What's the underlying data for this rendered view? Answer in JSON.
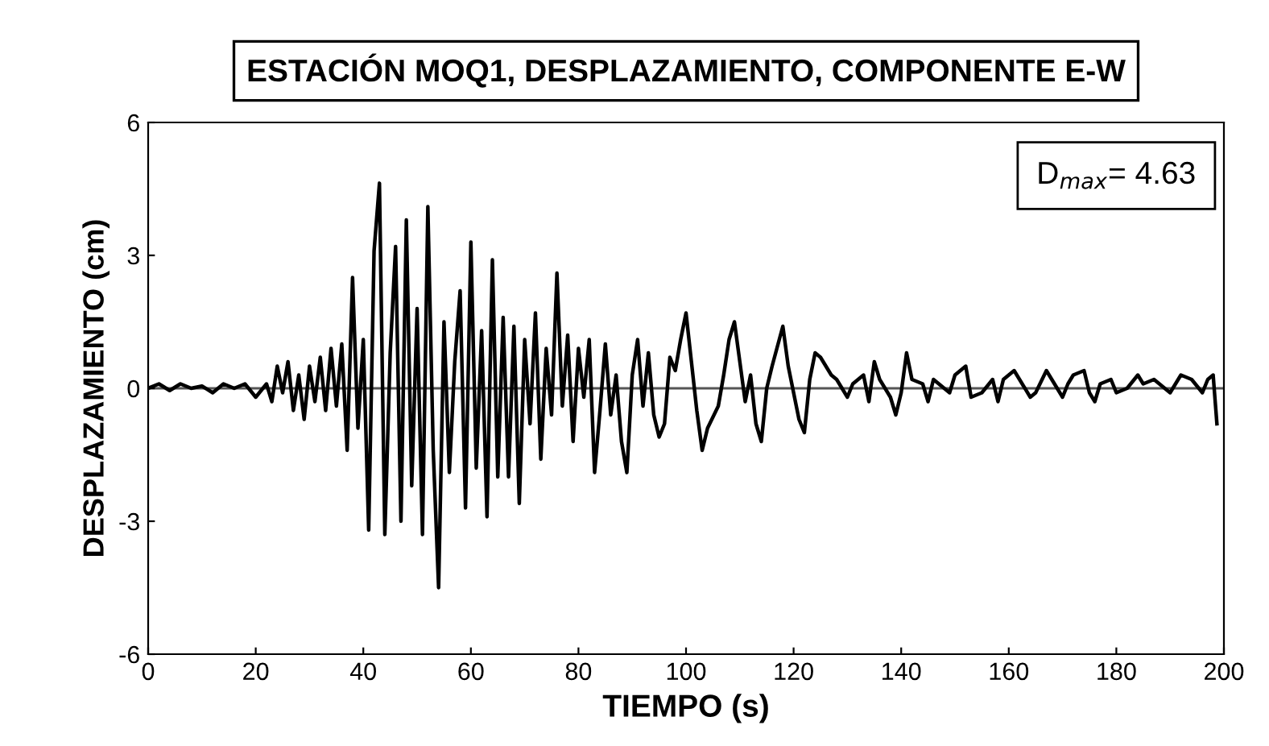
{
  "chart_data": {
    "type": "line",
    "title": "ESTACIÓN MOQ1, DESPLAZAMIENTO, COMPONENTE E-W",
    "xlabel": "TIEMPO (s)",
    "ylabel": "DESPLAZAMIENTO (cm)",
    "annotations": [
      "D$_{max}$= 4.63"
    ],
    "xlim": [
      0,
      200
    ],
    "xticks": [
      0,
      20,
      40,
      60,
      80,
      100,
      120,
      140,
      160,
      180,
      200
    ],
    "ylim": [
      -6,
      6
    ],
    "yticks": [
      -6,
      -3,
      0,
      3,
      6
    ],
    "grid": false,
    "legend": false,
    "ref_lines": [
      {
        "axis": "y",
        "value": 0,
        "color": "#555555"
      }
    ],
    "series": [
      {
        "color": "#000000",
        "x": [
          0,
          2,
          4,
          6,
          8,
          10,
          12,
          14,
          16,
          18,
          20,
          22,
          23,
          24,
          25,
          26,
          27,
          28,
          29,
          30,
          31,
          32,
          33,
          34,
          35,
          36,
          37,
          38,
          39,
          40,
          41,
          42,
          43,
          44,
          45,
          46,
          47,
          48,
          49,
          50,
          51,
          52,
          53,
          54,
          55,
          56,
          57,
          58,
          59,
          60,
          61,
          62,
          63,
          64,
          65,
          66,
          67,
          68,
          69,
          70,
          71,
          72,
          73,
          74,
          75,
          76,
          77,
          78,
          79,
          80,
          81,
          82,
          83,
          84,
          85,
          86,
          87,
          88,
          89,
          90,
          91,
          92,
          93,
          94,
          95,
          96,
          97,
          98,
          99,
          100,
          101,
          102,
          103,
          104,
          106,
          107,
          108,
          109,
          110,
          111,
          112,
          113,
          114,
          115,
          116,
          118,
          119,
          121,
          122,
          123,
          124,
          125,
          127,
          128,
          130,
          131,
          133,
          134,
          135,
          136,
          138,
          139,
          140,
          141,
          142,
          144,
          145,
          146,
          147,
          149,
          150,
          152,
          153,
          155,
          157,
          158,
          159,
          161,
          162,
          164,
          165,
          167,
          168,
          170,
          171,
          172,
          174,
          175,
          176,
          177,
          179,
          180,
          182,
          184,
          185,
          187,
          188,
          190,
          192,
          194,
          196,
          197,
          198,
          198.7
        ],
        "values": [
          0,
          0.1,
          -0.05,
          0.1,
          0,
          0.05,
          -0.1,
          0.1,
          0,
          0.1,
          -0.2,
          0.1,
          -0.3,
          0.5,
          -0.1,
          0.6,
          -0.5,
          0.3,
          -0.7,
          0.5,
          -0.3,
          0.7,
          -0.5,
          0.9,
          -0.4,
          1.0,
          -1.4,
          2.5,
          -0.9,
          1.1,
          -3.2,
          3.1,
          4.63,
          -3.3,
          0.8,
          3.2,
          -3.0,
          3.8,
          -2.2,
          1.8,
          -3.3,
          4.1,
          -1.4,
          -4.5,
          1.5,
          -1.9,
          0.6,
          2.2,
          -2.7,
          3.3,
          -1.8,
          1.3,
          -2.9,
          2.9,
          -2.0,
          1.6,
          -2.0,
          1.4,
          -2.6,
          1.1,
          -0.8,
          1.7,
          -1.6,
          0.9,
          -0.6,
          2.6,
          -0.4,
          1.2,
          -1.2,
          0.9,
          -0.2,
          1.1,
          -1.9,
          -0.5,
          1.0,
          -0.6,
          0.3,
          -1.2,
          -1.9,
          0.3,
          1.1,
          -0.4,
          0.8,
          -0.6,
          -1.1,
          -0.8,
          0.7,
          0.4,
          1.1,
          1.7,
          0.6,
          -0.5,
          -1.4,
          -0.9,
          -0.4,
          0.3,
          1.1,
          1.5,
          0.6,
          -0.3,
          0.3,
          -0.8,
          -1.2,
          0,
          0.5,
          1.4,
          0.5,
          -0.7,
          -1.0,
          0.2,
          0.8,
          0.7,
          0.3,
          0.2,
          -0.2,
          0.1,
          0.3,
          -0.3,
          0.6,
          0.2,
          -0.2,
          -0.6,
          -0.1,
          0.8,
          0.2,
          0.1,
          -0.3,
          0.2,
          0.1,
          -0.1,
          0.3,
          0.5,
          -0.2,
          -0.1,
          0.2,
          -0.3,
          0.2,
          0.4,
          0.2,
          -0.2,
          -0.1,
          0.4,
          0.2,
          -0.2,
          0.1,
          0.3,
          0.4,
          -0.1,
          -0.3,
          0.1,
          0.2,
          -0.1,
          0,
          0.3,
          0.1,
          0.2,
          0.1,
          -0.1,
          0.3,
          0.2,
          -0.1,
          0.2,
          0.3,
          -0.8
        ]
      }
    ]
  }
}
